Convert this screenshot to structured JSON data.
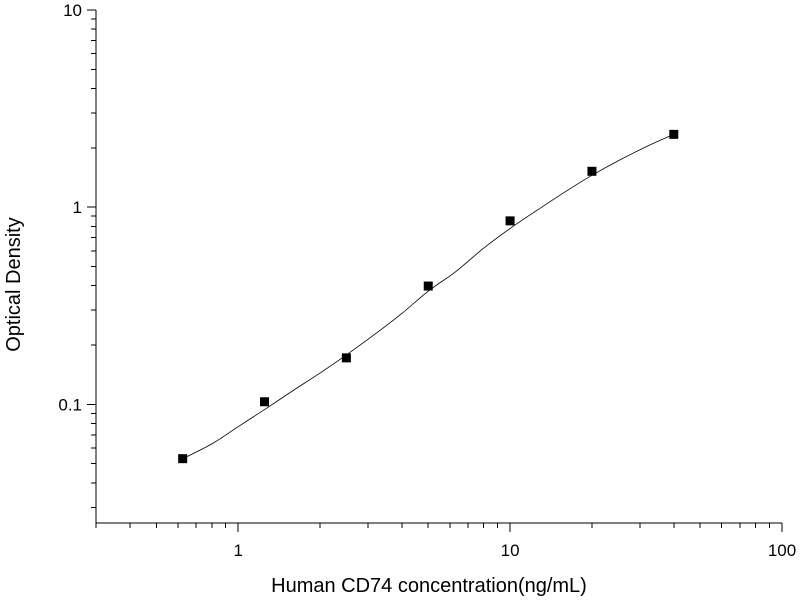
{
  "chart_data": {
    "type": "scatter",
    "title": "",
    "xlabel": "Human CD74 concentration(ng/mL)",
    "ylabel": "Optical Density",
    "xscale": "log",
    "yscale": "log",
    "xlim": [
      0.3,
      100
    ],
    "ylim": [
      0.025,
      10
    ],
    "x_ticks": [
      {
        "value": 1,
        "label": "1"
      },
      {
        "value": 10,
        "label": "10"
      },
      {
        "value": 100,
        "label": "100"
      }
    ],
    "y_ticks": [
      {
        "value": 0.1,
        "label": "0.1"
      },
      {
        "value": 1,
        "label": "1"
      },
      {
        "value": 10,
        "label": "10"
      }
    ],
    "grid": false,
    "legend": "none",
    "series": [
      {
        "x": [
          0.625,
          1.25,
          2.5,
          5,
          10,
          20,
          40
        ],
        "y": [
          0.053,
          0.103,
          0.172,
          0.398,
          0.852,
          1.52,
          2.34
        ]
      }
    ],
    "fit_curve": {
      "x": [
        0.625,
        0.8,
        1.0,
        1.25,
        1.6,
        2.0,
        2.5,
        3.2,
        4.0,
        5.0,
        6.3,
        8.0,
        10,
        12.5,
        16,
        20,
        25,
        32,
        40
      ],
      "y": [
        0.053,
        0.063,
        0.077,
        0.094,
        0.118,
        0.144,
        0.178,
        0.228,
        0.289,
        0.375,
        0.47,
        0.62,
        0.78,
        0.96,
        1.2,
        1.45,
        1.72,
        2.04,
        2.34
      ]
    }
  }
}
